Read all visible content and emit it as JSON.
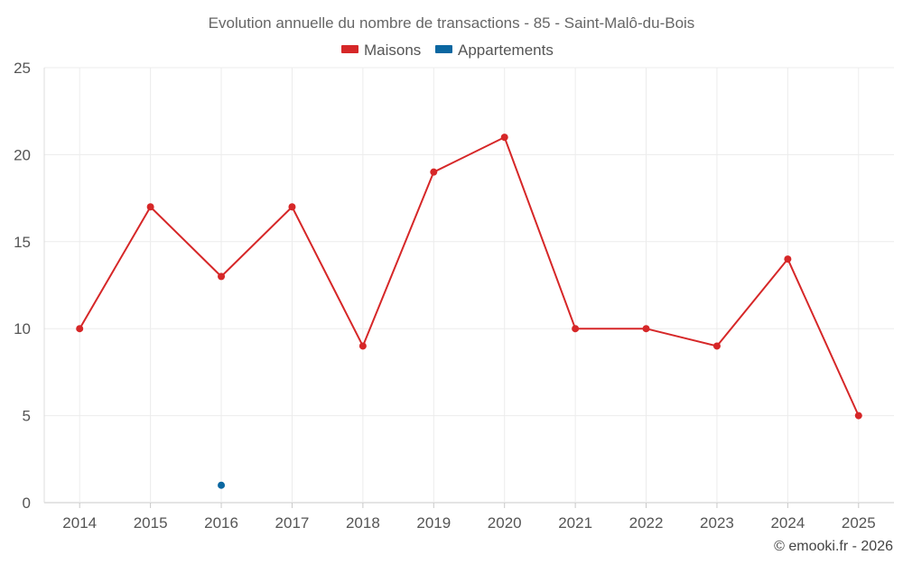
{
  "chart_data": {
    "type": "line",
    "title": "Evolution annuelle du nombre de transactions - 85 - Saint-Malô-du-Bois",
    "categories": [
      "2014",
      "2015",
      "2016",
      "2017",
      "2018",
      "2019",
      "2020",
      "2021",
      "2022",
      "2023",
      "2024",
      "2025"
    ],
    "series": [
      {
        "name": "Maisons",
        "color": "#d62728",
        "values": [
          10,
          17,
          13,
          17,
          9,
          19,
          21,
          10,
          10,
          9,
          14,
          5
        ]
      },
      {
        "name": "Appartements",
        "color": "#0b67a1",
        "values": [
          null,
          null,
          1,
          null,
          null,
          null,
          null,
          null,
          null,
          null,
          null,
          null
        ]
      }
    ],
    "y_ticks": [
      "0",
      "5",
      "10",
      "15",
      "20",
      "25"
    ],
    "ylim": [
      0,
      25
    ],
    "grid": true,
    "legend": "top-center"
  },
  "credit": "© emooki.fr - 2026"
}
